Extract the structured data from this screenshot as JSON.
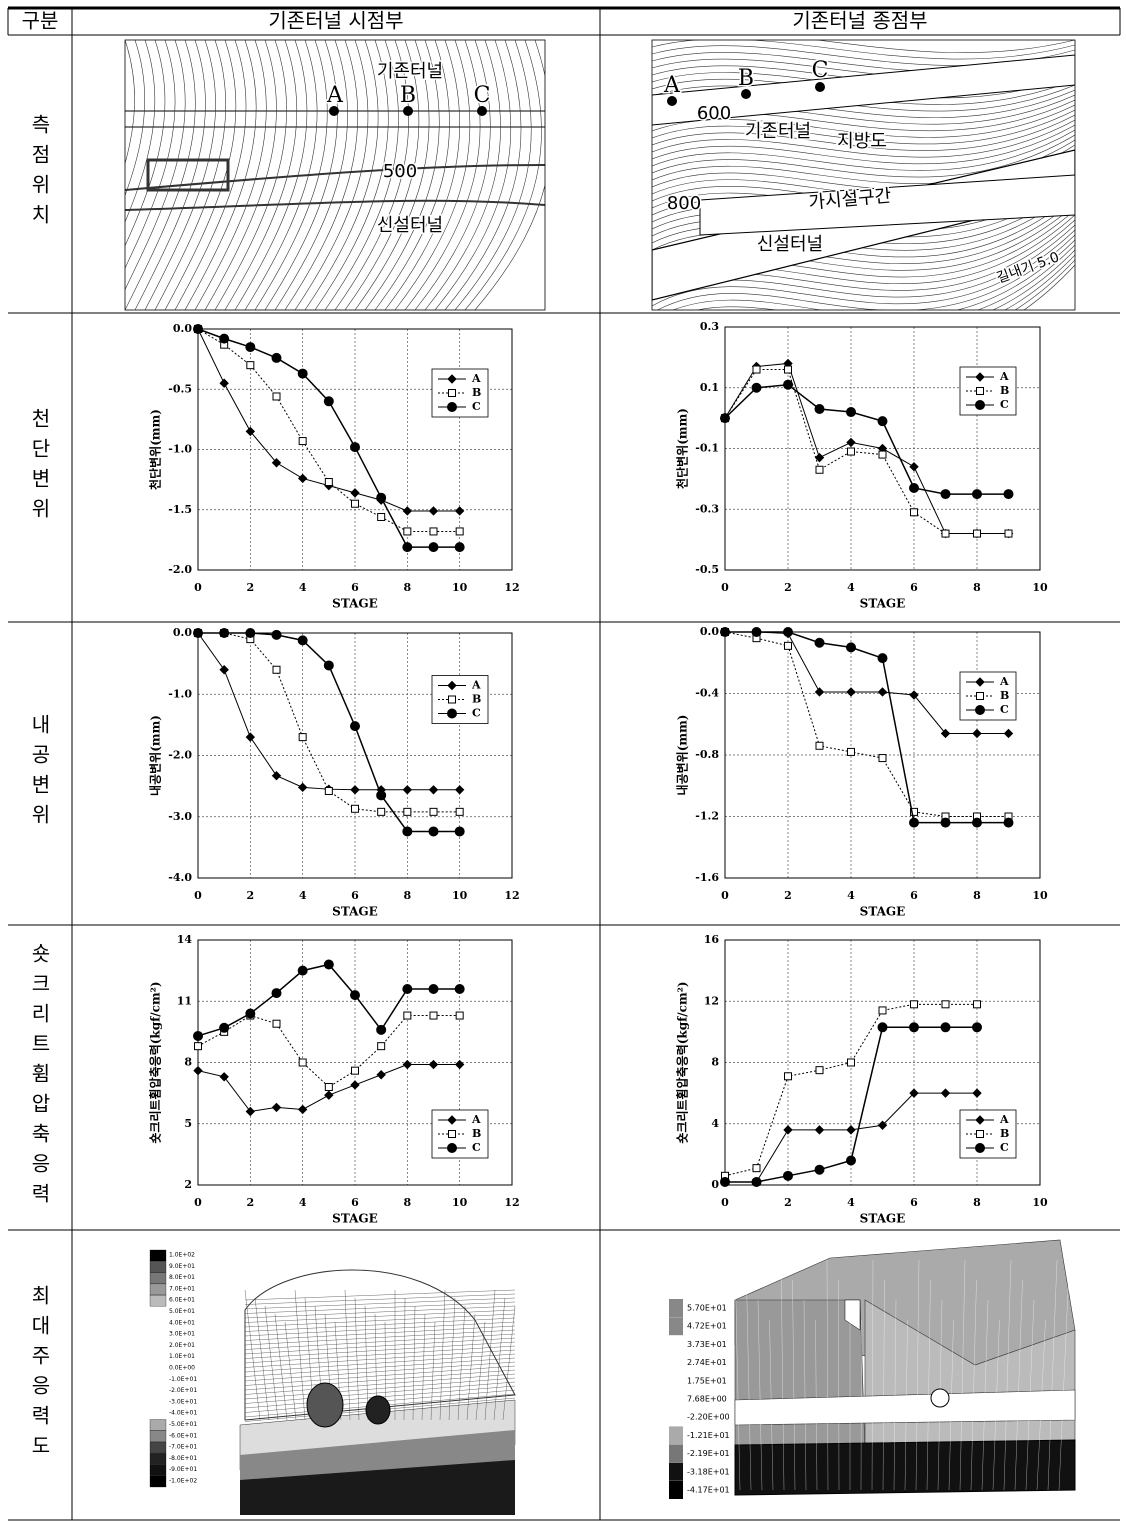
{
  "table": {
    "header": [
      "구분",
      "기존터널 시점부",
      "기존터널 종점부"
    ],
    "row_labels": [
      "측점위치",
      "천단변위",
      "내공변위",
      "숏크리트휨압축응력",
      "최대주응력도"
    ],
    "maps": [
      {
        "labels": [
          "기존터널",
          "A",
          "B",
          "C",
          "500",
          "신설터널"
        ]
      },
      {
        "labels": [
          "A",
          "B",
          "C",
          "600",
          "기존터널",
          "지방도",
          "800",
          "가시설구간",
          "신설터널",
          "길내기 5.0"
        ]
      }
    ],
    "stress_legends": [
      [
        "1.0E+02",
        "9.0E+01",
        "8.0E+01",
        "7.0E+01",
        "6.0E+01",
        "5.0E+01",
        "4.0E+01",
        "3.0E+01",
        "2.0E+01",
        "1.0E+01",
        "0.0E+00",
        "-1.0E+01",
        "-2.0E+01",
        "-3.0E+01",
        "-4.0E+01",
        "-5.0E+01",
        "-6.0E+01",
        "-7.0E+01",
        "-8.0E+01",
        "-9.0E+01",
        "-1.0E+02"
      ],
      [
        "5.70E+01",
        "4.72E+01",
        "3.73E+01",
        "2.74E+01",
        "1.75E+01",
        "7.68E+00",
        "-2.20E+00",
        "-1.21E+01",
        "-2.19E+01",
        "-3.18E+01",
        "-4.17E+01"
      ]
    ]
  },
  "chart_data": [
    {
      "type": "line",
      "ylabel": "천단변위(mm)",
      "xlabel": "STAGE",
      "legend": "upper right",
      "grid": true,
      "xlim": [
        0,
        12
      ],
      "xticks": [
        0,
        2,
        4,
        6,
        8,
        10,
        12
      ],
      "ylim": [
        -2,
        0
      ],
      "yticks": [
        {
          "value": 0,
          "label": "0.0"
        },
        -0.5,
        {
          "value": -1,
          "label": "-1.0"
        },
        -1.5,
        {
          "value": -2,
          "label": "-2.0"
        }
      ],
      "x": [
        0,
        1,
        2,
        3,
        4,
        5,
        6,
        7,
        8,
        9,
        10
      ],
      "series": [
        {
          "name": "A",
          "color": "#000000",
          "marker": "diamond",
          "linestyle": "solid",
          "values": [
            0,
            -0.45,
            -0.85,
            -1.11,
            -1.24,
            -1.3,
            -1.36,
            -1.42,
            -1.51,
            -1.51,
            -1.51
          ]
        },
        {
          "name": "B",
          "color": "#000000",
          "marker": "square",
          "linestyle": "dotted",
          "values": [
            0,
            -0.13,
            -0.3,
            -0.56,
            -0.93,
            -1.27,
            -1.45,
            -1.56,
            -1.68,
            -1.68,
            -1.68
          ]
        },
        {
          "name": "C",
          "color": "#000000",
          "marker": "circle",
          "linestyle": "solid",
          "values": [
            0,
            -0.08,
            -0.15,
            -0.24,
            -0.37,
            -0.6,
            -0.98,
            -1.4,
            -1.81,
            -1.81,
            -1.81
          ]
        }
      ]
    },
    {
      "type": "line",
      "ylabel": "천단변위(mm)",
      "xlabel": "STAGE",
      "legend": "upper right",
      "grid": true,
      "xlim": [
        0,
        10
      ],
      "xticks": [
        0,
        2,
        4,
        6,
        8,
        10
      ],
      "ylim": [
        -0.5,
        0.3
      ],
      "yticks": [
        0.3,
        0.1,
        -0.1,
        -0.3,
        -0.5
      ],
      "x": [
        0,
        1,
        2,
        3,
        4,
        5,
        6,
        7,
        8,
        9
      ],
      "series": [
        {
          "name": "A",
          "color": "#000000",
          "marker": "diamond",
          "linestyle": "solid",
          "values": [
            0,
            0.17,
            0.18,
            -0.13,
            -0.08,
            -0.1,
            -0.16,
            -0.38,
            -0.38,
            -0.38
          ]
        },
        {
          "name": "B",
          "color": "#000000",
          "marker": "square",
          "linestyle": "dotted",
          "values": [
            0,
            0.16,
            0.16,
            -0.17,
            -0.11,
            -0.12,
            -0.31,
            -0.38,
            -0.38,
            -0.38
          ]
        },
        {
          "name": "C",
          "color": "#000000",
          "marker": "circle",
          "linestyle": "solid",
          "values": [
            0,
            0.1,
            0.11,
            0.03,
            0.02,
            -0.01,
            -0.23,
            -0.25,
            -0.25,
            -0.25
          ]
        }
      ]
    },
    {
      "type": "line",
      "ylabel": "내공변위(mm)",
      "xlabel": "STAGE",
      "legend": "center right",
      "grid": true,
      "xlim": [
        0,
        12
      ],
      "xticks": [
        0,
        2,
        4,
        6,
        8,
        10,
        12
      ],
      "ylim": [
        -4,
        0
      ],
      "yticks": [
        {
          "value": 0,
          "label": "0.0"
        },
        {
          "value": -1,
          "label": "-1.0"
        },
        {
          "value": -2,
          "label": "-2.0"
        },
        {
          "value": -3,
          "label": "-3.0"
        },
        {
          "value": -4,
          "label": "-4.0"
        }
      ],
      "x": [
        0,
        1,
        2,
        3,
        4,
        5,
        6,
        7,
        8,
        9,
        10
      ],
      "series": [
        {
          "name": "A",
          "color": "#000000",
          "marker": "diamond",
          "linestyle": "solid",
          "values": [
            0,
            -0.6,
            -1.7,
            -2.33,
            -2.52,
            -2.55,
            -2.56,
            -2.56,
            -2.56,
            -2.56,
            -2.56
          ]
        },
        {
          "name": "B",
          "color": "#000000",
          "marker": "square",
          "linestyle": "dotted",
          "values": [
            0,
            0,
            -0.1,
            -0.6,
            -1.7,
            -2.58,
            -2.87,
            -2.92,
            -2.92,
            -2.92,
            -2.92
          ]
        },
        {
          "name": "C",
          "color": "#000000",
          "marker": "circle",
          "linestyle": "solid",
          "values": [
            0,
            0,
            0,
            -0.03,
            -0.12,
            -0.53,
            -1.52,
            -2.65,
            -3.24,
            -3.24,
            -3.24
          ]
        }
      ]
    },
    {
      "type": "line",
      "ylabel": "내공변위(mm)",
      "xlabel": "STAGE",
      "legend": "upper right",
      "grid": true,
      "xlim": [
        0,
        10
      ],
      "xticks": [
        0,
        2,
        4,
        6,
        8,
        10
      ],
      "ylim": [
        -1.6,
        0
      ],
      "yticks": [
        {
          "value": 0,
          "label": "0.0"
        },
        -0.4,
        -0.8,
        -1.2,
        -1.6
      ],
      "x": [
        0,
        1,
        2,
        3,
        4,
        5,
        6,
        7,
        8,
        9
      ],
      "series": [
        {
          "name": "A",
          "color": "#000000",
          "marker": "diamond",
          "linestyle": "solid",
          "values": [
            0,
            0,
            -0.01,
            -0.39,
            -0.39,
            -0.39,
            -0.41,
            -0.66,
            -0.66,
            -0.66
          ]
        },
        {
          "name": "B",
          "color": "#000000",
          "marker": "square",
          "linestyle": "dotted",
          "values": [
            0,
            -0.04,
            -0.09,
            -0.74,
            -0.78,
            -0.82,
            -1.17,
            -1.2,
            -1.2,
            -1.2
          ]
        },
        {
          "name": "C",
          "color": "#000000",
          "marker": "circle",
          "linestyle": "solid",
          "values": [
            0,
            0,
            0,
            -0.07,
            -0.1,
            -0.17,
            -1.24,
            -1.24,
            -1.24,
            -1.24
          ]
        }
      ]
    },
    {
      "type": "line",
      "ylabel": "숏크리트휨압축응력(kgf/cm²)",
      "xlabel": "STAGE",
      "legend": "lower right",
      "grid": true,
      "xlim": [
        0,
        12
      ],
      "xticks": [
        0,
        2,
        4,
        6,
        8,
        10,
        12
      ],
      "ylim": [
        2,
        14
      ],
      "yticks": [
        2,
        5,
        8,
        11,
        14
      ],
      "x": [
        0,
        1,
        2,
        3,
        4,
        5,
        6,
        7,
        8,
        9,
        10
      ],
      "series": [
        {
          "name": "A",
          "color": "#000000",
          "marker": "diamond",
          "linestyle": "solid",
          "values": [
            7.6,
            7.3,
            5.6,
            5.8,
            5.7,
            6.4,
            6.9,
            7.4,
            7.9,
            7.9,
            7.9
          ]
        },
        {
          "name": "B",
          "color": "#000000",
          "marker": "square",
          "linestyle": "dotted",
          "values": [
            8.8,
            9.5,
            10.3,
            9.9,
            8.0,
            6.8,
            7.6,
            8.8,
            10.3,
            10.3,
            10.3
          ]
        },
        {
          "name": "C",
          "color": "#000000",
          "marker": "circle",
          "linestyle": "solid",
          "values": [
            9.3,
            9.7,
            10.4,
            11.4,
            12.5,
            12.8,
            11.3,
            9.6,
            11.6,
            11.6,
            11.6
          ]
        }
      ]
    },
    {
      "type": "line",
      "ylabel": "숏크리트휨압축응력(kgf/cm²)",
      "xlabel": "STAGE",
      "legend": "lower right",
      "grid": true,
      "xlim": [
        0,
        10
      ],
      "xticks": [
        0,
        2,
        4,
        6,
        8,
        10
      ],
      "ylim": [
        0,
        16
      ],
      "yticks": [
        0,
        4,
        8,
        12,
        16
      ],
      "x": [
        0,
        1,
        2,
        3,
        4,
        5,
        6,
        7,
        8
      ],
      "series": [
        {
          "name": "A",
          "color": "#000000",
          "marker": "diamond",
          "linestyle": "solid",
          "values": [
            0.2,
            0.2,
            3.6,
            3.6,
            3.6,
            3.9,
            6.0,
            6.0,
            6.0
          ]
        },
        {
          "name": "B",
          "color": "#000000",
          "marker": "square",
          "linestyle": "dotted",
          "values": [
            0.6,
            1.1,
            7.1,
            7.5,
            8.0,
            11.4,
            11.8,
            11.8,
            11.8
          ]
        },
        {
          "name": "C",
          "color": "#000000",
          "marker": "circle",
          "linestyle": "solid",
          "values": [
            0.2,
            0.2,
            0.6,
            1.0,
            1.6,
            10.3,
            10.3,
            10.3,
            10.3
          ]
        }
      ]
    }
  ]
}
